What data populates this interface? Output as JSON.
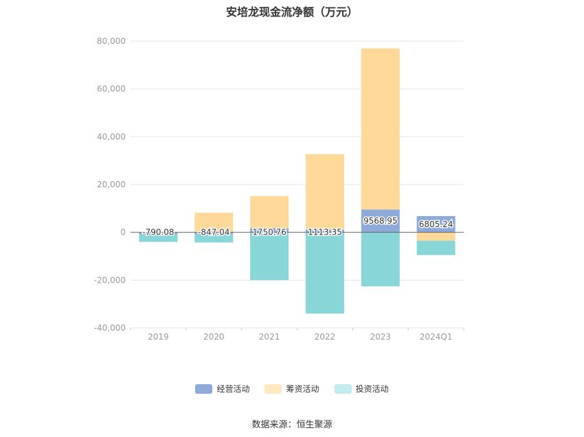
{
  "chart_data": {
    "type": "bar",
    "stacked": true,
    "title": "安培龙现金流净额（万元）",
    "categories": [
      "2019",
      "2020",
      "2021",
      "2022",
      "2023",
      "2024Q1"
    ],
    "series": [
      {
        "name": "经营活动",
        "color": "#8eaadb",
        "values": [
          -790.08,
          -847.04,
          1750.76,
          1113.35,
          9568.95,
          6805.24
        ],
        "labels": [
          "-790.08",
          "-847.04",
          "1750.76",
          "1113.35",
          "9568.95",
          "6805.24"
        ]
      },
      {
        "name": "筹资活动",
        "color": "#ffd99a",
        "values": [
          0,
          8200,
          13400,
          31600,
          67400,
          -3500
        ]
      },
      {
        "name": "投资活动",
        "color": "#88d6d8",
        "values": [
          -3200,
          -3400,
          -20000,
          -34000,
          -22600,
          -6000
        ]
      }
    ],
    "ylim": [
      -40000,
      80000
    ],
    "yticks": [
      80000,
      60000,
      40000,
      20000,
      0,
      -20000,
      -40000
    ],
    "ytick_labels": [
      "80,000",
      "60,000",
      "40,000",
      "20,000",
      "0",
      "-20,000",
      "-40,000"
    ],
    "grid": true,
    "legend_position": "bottom"
  },
  "source": "数据来源：恒生聚源"
}
